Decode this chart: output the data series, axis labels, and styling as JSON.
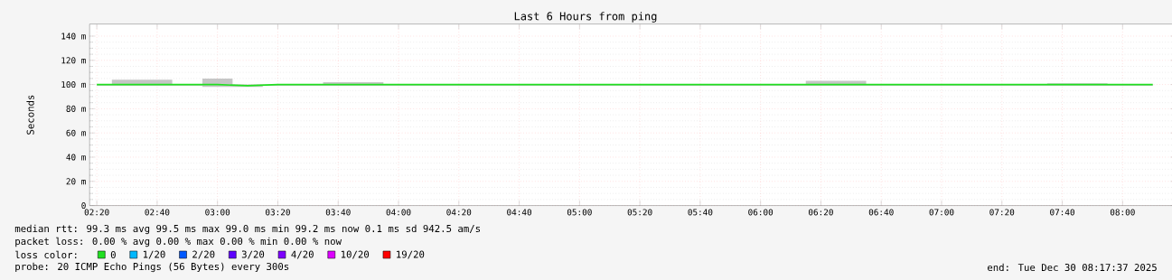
{
  "chart_data": {
    "type": "line",
    "title": "Last 6 Hours from ping",
    "ylabel": "Seconds",
    "x": [
      2.3333,
      2.5,
      2.6667,
      2.8333,
      3,
      3.1667,
      3.3333,
      3.5,
      3.6667,
      3.8333,
      4,
      4.1667,
      4.3333,
      4.5,
      4.6667,
      4.8333,
      5,
      5.1667,
      5.3333,
      5.5,
      5.6667,
      5.8333,
      6,
      6.1667,
      6.3333,
      6.5,
      6.6667,
      6.8333,
      7,
      7.1667,
      7.3333,
      7.5,
      7.6667,
      7.8333,
      8,
      8.1667
    ],
    "series": [
      {
        "name": "0",
        "color": "#20e020",
        "values": [
          100,
          100,
          100,
          100,
          100,
          99,
          100,
          100,
          100,
          100,
          100,
          100,
          100,
          100,
          100,
          100,
          100,
          100,
          100,
          100,
          100,
          100,
          100,
          100,
          100,
          100,
          100,
          100,
          100,
          100,
          100,
          100,
          100,
          100,
          100,
          100
        ],
        "lower": [
          99,
          99,
          99,
          99,
          98,
          98,
          99,
          99,
          99,
          99,
          99,
          99,
          99,
          99,
          99,
          99,
          99,
          99,
          99,
          99,
          99,
          99,
          99,
          99,
          99,
          99,
          99,
          99,
          99,
          99,
          99,
          99,
          99,
          99,
          99,
          99
        ],
        "upper": [
          100,
          104,
          104,
          100,
          105,
          100,
          100,
          100,
          102,
          102,
          100,
          100,
          100,
          100,
          100,
          100,
          100,
          100,
          100,
          100,
          100,
          100,
          100,
          100,
          103,
          103,
          100,
          100,
          100,
          100,
          100,
          100,
          101,
          101,
          100,
          100
        ]
      },
      {
        "name": "1/20",
        "color": "#00b8ff",
        "values": [
          null,
          null,
          null,
          null,
          null,
          null,
          null,
          null,
          null,
          null,
          null,
          null,
          null,
          null,
          null,
          null,
          null,
          null,
          null,
          null,
          null,
          null,
          null,
          null,
          null,
          null,
          null,
          null,
          null,
          null,
          null,
          null,
          null,
          null,
          null,
          null
        ]
      },
      {
        "name": "2/20",
        "color": "#0059ff",
        "values": [
          null,
          null,
          null,
          null,
          null,
          null,
          null,
          null,
          null,
          null,
          null,
          null,
          null,
          null,
          null,
          null,
          null,
          null,
          null,
          null,
          null,
          null,
          null,
          null,
          null,
          null,
          null,
          null,
          null,
          null,
          null,
          null,
          null,
          null,
          null,
          null
        ]
      },
      {
        "name": "3/20",
        "color": "#5e00ff",
        "values": [
          null,
          null,
          null,
          null,
          null,
          null,
          null,
          null,
          null,
          null,
          null,
          null,
          null,
          null,
          null,
          null,
          null,
          null,
          null,
          null,
          null,
          null,
          null,
          null,
          null,
          null,
          null,
          null,
          null,
          null,
          null,
          null,
          null,
          null,
          null,
          null
        ]
      },
      {
        "name": "4/20",
        "color": "#7e00ff",
        "values": [
          null,
          null,
          null,
          null,
          null,
          null,
          null,
          null,
          null,
          null,
          null,
          null,
          null,
          null,
          null,
          null,
          null,
          null,
          null,
          null,
          null,
          null,
          null,
          null,
          null,
          null,
          null,
          null,
          null,
          null,
          null,
          null,
          null,
          null,
          null,
          null
        ]
      },
      {
        "name": "10/20",
        "color": "#dd00ff",
        "values": [
          null,
          null,
          null,
          null,
          null,
          null,
          null,
          null,
          null,
          null,
          null,
          null,
          null,
          null,
          null,
          null,
          null,
          null,
          null,
          null,
          null,
          null,
          null,
          null,
          null,
          null,
          null,
          null,
          null,
          null,
          null,
          null,
          null,
          null,
          null,
          null
        ]
      },
      {
        "name": "19/20",
        "color": "#ff0000",
        "values": [
          null,
          null,
          null,
          null,
          null,
          null,
          null,
          null,
          null,
          null,
          null,
          null,
          null,
          null,
          null,
          null,
          null,
          null,
          null,
          null,
          null,
          null,
          null,
          null,
          null,
          null,
          null,
          null,
          null,
          null,
          null,
          null,
          null,
          null,
          null,
          null
        ]
      }
    ],
    "legend_title": "loss color:",
    "legend": "bottom",
    "grid": true,
    "marker": "none",
    "xlim": [
      2.2936,
      8.2936
    ],
    "xticks": [
      {
        "value": 2.3333,
        "label": "02:20"
      },
      {
        "value": 2.6667,
        "label": "02:40"
      },
      {
        "value": 3,
        "label": "03:00"
      },
      {
        "value": 3.3333,
        "label": "03:20"
      },
      {
        "value": 3.6667,
        "label": "03:40"
      },
      {
        "value": 4,
        "label": "04:00"
      },
      {
        "value": 4.3333,
        "label": "04:20"
      },
      {
        "value": 4.6667,
        "label": "04:40"
      },
      {
        "value": 5,
        "label": "05:00"
      },
      {
        "value": 5.3333,
        "label": "05:20"
      },
      {
        "value": 5.6667,
        "label": "05:40"
      },
      {
        "value": 6,
        "label": "06:00"
      },
      {
        "value": 6.3333,
        "label": "06:20"
      },
      {
        "value": 6.6667,
        "label": "06:40"
      },
      {
        "value": 7,
        "label": "07:00"
      },
      {
        "value": 7.3333,
        "label": "07:20"
      },
      {
        "value": 7.6667,
        "label": "07:40"
      },
      {
        "value": 8,
        "label": "08:00"
      }
    ],
    "ylim": [
      0,
      150
    ],
    "yticks": [
      0,
      {
        "value": 20,
        "label": "20 m"
      },
      {
        "value": 40,
        "label": "40 m"
      },
      {
        "value": 60,
        "label": "60 m"
      },
      {
        "value": 80,
        "label": "80 m"
      },
      {
        "value": 100,
        "label": "100 m"
      },
      {
        "value": 120,
        "label": "120 m"
      },
      {
        "value": 140,
        "label": "140 m"
      }
    ],
    "annotations": [
      "median rtt:  99.3 ms avg  99.5 ms max  99.0 ms min  99.2 ms now  0.1 ms sd  942.5   am/s",
      "packet loss: 0.00 % avg  0.00 % max  0.00 % min  0.00 % now",
      "probe:       20 ICMP Echo Pings (56 Bytes) every 300s",
      "end: Tue Dec 30 08:17:37 2025"
    ]
  }
}
